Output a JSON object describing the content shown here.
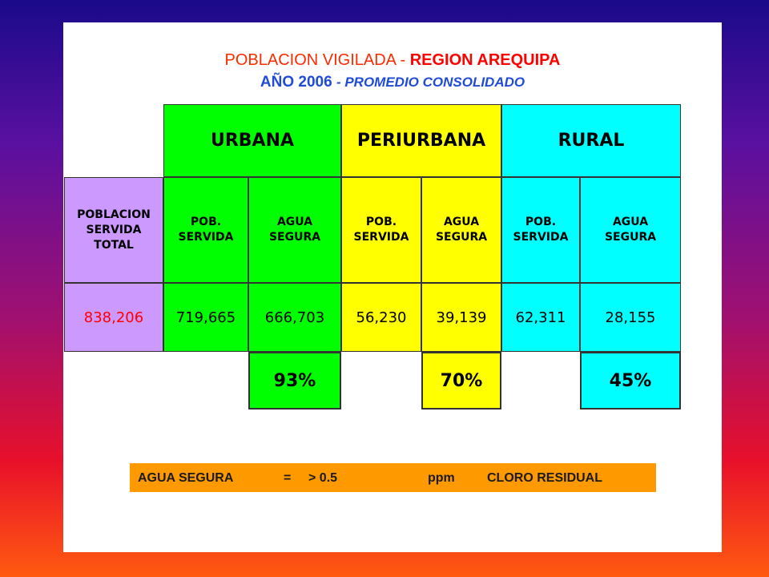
{
  "title": {
    "line1_part1": "POBLACION VIGILADA -",
    "line1_part2": "REGION AREQUIPA",
    "line2_part1": "AÑO 2006",
    "line2_part2": "- PROMEDIO CONSOLIDADO"
  },
  "colors": {
    "urbana": "#00ff00",
    "periurbana": "#ffff00",
    "rural": "#00ffff",
    "total": "#cc99ff",
    "note_bg": "#ff9900"
  },
  "table": {
    "headers": {
      "urbana": "URBANA",
      "periurbana": "PERIURBANA",
      "rural": "RURAL"
    },
    "total_label": "POBLACION SERVIDA TOTAL",
    "sub": {
      "urbana_pob": "POB. SERVIDA",
      "urbana_agua": "AGUA SEGURA",
      "periurbana_pob": "POB. SERVIDA",
      "periurbana_agua": "AGUA SEGURA",
      "rural_pob": "POB. SERVIDA",
      "rural_agua": "AGUA SEGURA"
    },
    "values": {
      "total": "838,206",
      "urbana_pob": "719,665",
      "urbana_agua": "666,703",
      "periurbana_pob": "56,230",
      "periurbana_agua": "39,139",
      "rural_pob": "62,311",
      "rural_agua": "28,155"
    },
    "percentages": {
      "urbana": "93%",
      "periurbana": "70%",
      "rural": "45%"
    }
  },
  "note": {
    "label": "AGUA SEGURA",
    "eq": "=",
    "threshold": "> 0.5",
    "unit": "ppm",
    "desc": "CLORO RESIDUAL"
  }
}
